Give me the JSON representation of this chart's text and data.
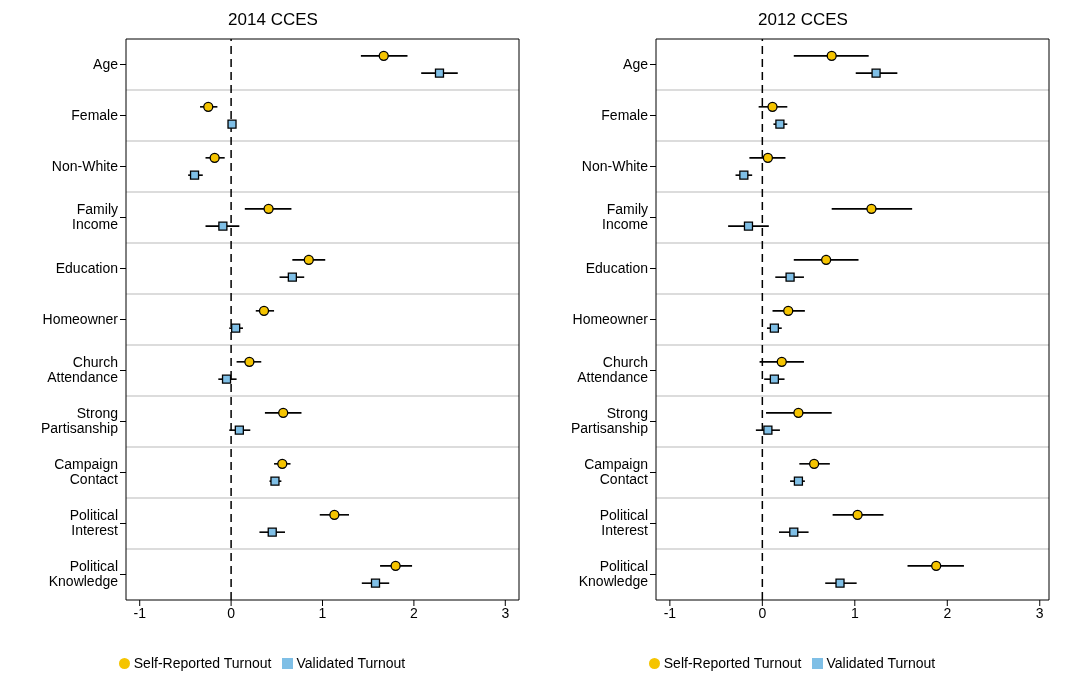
{
  "chart_data": [
    {
      "type": "scatter",
      "title": "2014 CCES",
      "orientation": "horizontal",
      "categories": [
        "Age",
        "Female",
        "Non-White",
        "Family Income",
        "Education",
        "Homeowner",
        "Church Attendance",
        "Strong Partisanship",
        "Campaign Contact",
        "Political Interest",
        "Political Knowledge"
      ],
      "xlim": [
        -1.15,
        3.15
      ],
      "xticks": [
        -1,
        0,
        1,
        2,
        3
      ],
      "grid": "y",
      "legend": "bottom",
      "ref_lines": [
        {
          "axis": "x",
          "value": 0,
          "color": "#000000",
          "line_style": "dashed"
        }
      ],
      "series": [
        {
          "name": "Self-Reported Turnout",
          "color": "#f5c400",
          "marker": "circle",
          "values": [
            1.67,
            -0.25,
            -0.18,
            0.41,
            0.85,
            0.36,
            0.2,
            0.57,
            0.56,
            1.13,
            1.8
          ],
          "errors": [
            [
              1.42,
              1.93
            ],
            [
              -0.34,
              -0.15
            ],
            [
              -0.28,
              -0.07
            ],
            [
              0.15,
              0.66
            ],
            [
              0.67,
              1.03
            ],
            [
              0.27,
              0.47
            ],
            [
              0.06,
              0.33
            ],
            [
              0.37,
              0.77
            ],
            [
              0.47,
              0.65
            ],
            [
              0.97,
              1.29
            ],
            [
              1.63,
              1.98
            ]
          ]
        },
        {
          "name": "Validated Turnout",
          "color": "#7fbfe6",
          "marker": "square",
          "values": [
            2.28,
            0.01,
            -0.4,
            -0.09,
            0.67,
            0.05,
            -0.05,
            0.09,
            0.48,
            0.45,
            1.58
          ],
          "errors": [
            [
              2.08,
              2.48
            ],
            [
              -0.01,
              0.03
            ],
            [
              -0.47,
              -0.31
            ],
            [
              -0.28,
              0.09
            ],
            [
              0.53,
              0.8
            ],
            [
              -0.02,
              0.13
            ],
            [
              -0.14,
              0.06
            ],
            [
              -0.02,
              0.21
            ],
            [
              0.42,
              0.55
            ],
            [
              0.31,
              0.59
            ],
            [
              1.43,
              1.73
            ]
          ]
        }
      ]
    },
    {
      "type": "scatter",
      "title": "2012 CCES",
      "orientation": "horizontal",
      "categories": [
        "Age",
        "Female",
        "Non-White",
        "Family Income",
        "Education",
        "Homeowner",
        "Church Attendance",
        "Strong Partisanship",
        "Campaign Contact",
        "Political Interest",
        "Political Knowledge"
      ],
      "xlim": [
        -1.15,
        3.1
      ],
      "xticks": [
        -1,
        0,
        1,
        2,
        3
      ],
      "grid": "y",
      "legend": "bottom",
      "ref_lines": [
        {
          "axis": "x",
          "value": 0,
          "color": "#000000",
          "line_style": "dashed"
        }
      ],
      "series": [
        {
          "name": "Self-Reported Turnout",
          "color": "#f5c400",
          "marker": "circle",
          "values": [
            0.75,
            0.11,
            0.06,
            1.18,
            0.69,
            0.28,
            0.21,
            0.39,
            0.56,
            1.03,
            1.88
          ],
          "errors": [
            [
              0.34,
              1.15
            ],
            [
              -0.04,
              0.27
            ],
            [
              -0.14,
              0.25
            ],
            [
              0.75,
              1.62
            ],
            [
              0.34,
              1.04
            ],
            [
              0.11,
              0.46
            ],
            [
              -0.03,
              0.45
            ],
            [
              0.04,
              0.75
            ],
            [
              0.4,
              0.73
            ],
            [
              0.76,
              1.31
            ],
            [
              1.57,
              2.18
            ]
          ]
        },
        {
          "name": "Validated Turnout",
          "color": "#7fbfe6",
          "marker": "square",
          "values": [
            1.23,
            0.19,
            -0.2,
            -0.15,
            0.3,
            0.13,
            0.13,
            0.06,
            0.39,
            0.34,
            0.84
          ],
          "errors": [
            [
              1.01,
              1.46
            ],
            [
              0.12,
              0.27
            ],
            [
              -0.29,
              -0.11
            ],
            [
              -0.37,
              0.07
            ],
            [
              0.14,
              0.45
            ],
            [
              0.05,
              0.21
            ],
            [
              0.02,
              0.24
            ],
            [
              -0.07,
              0.19
            ],
            [
              0.3,
              0.46
            ],
            [
              0.18,
              0.5
            ],
            [
              0.68,
              1.02
            ]
          ]
        }
      ]
    }
  ]
}
